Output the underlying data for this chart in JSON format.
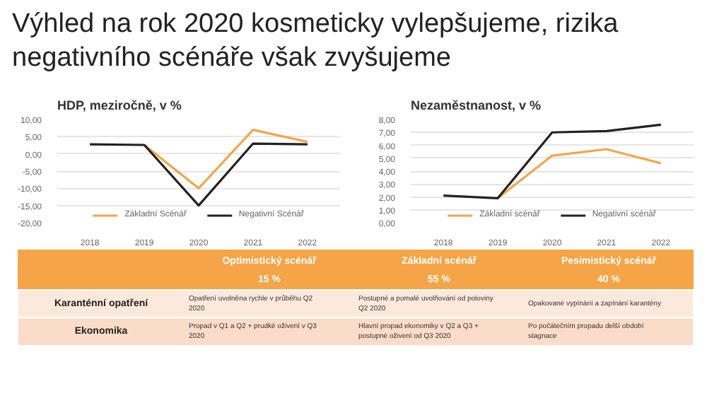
{
  "chart_data": [
    {
      "type": "other",
      "title": "Výhled na rok 2020 kosmeticky vylepšujeme, rizika negativního scénáře však zvyšujeme"
    },
    {
      "type": "line",
      "title": "HDP, meziročně, v %",
      "categories": [
        "2018",
        "2019",
        "2020",
        "2021",
        "2022"
      ],
      "series": [
        {
          "name": "Základní Scénář",
          "color": "#f5a547",
          "values": [
            null,
            2.6,
            -10.0,
            7.0,
            3.5
          ]
        },
        {
          "name": "Negativní Scénář",
          "color": "#222222",
          "values": [
            2.8,
            2.6,
            -15.0,
            3.0,
            2.8
          ]
        }
      ],
      "ylim": [
        -20,
        10
      ],
      "yticks": [
        {
          "value": -20,
          "label": "-20,00"
        },
        {
          "value": -15,
          "label": "-15,00"
        },
        {
          "value": -10,
          "label": "-10,00"
        },
        {
          "value": -5,
          "label": "-5,00"
        },
        {
          "value": 0,
          "label": "0,00"
        },
        {
          "value": 5,
          "label": "5,00"
        },
        {
          "value": 10,
          "label": "10,00"
        }
      ],
      "grid": "y",
      "legend": "bottom",
      "marker": "none",
      "line_style": "solid"
    },
    {
      "type": "line",
      "title": "Nezaměstnanost, v %",
      "categories": [
        "2018",
        "2019",
        "2020",
        "2021",
        "2022"
      ],
      "series": [
        {
          "name": "Základní scénář",
          "color": "#f5a547",
          "values": [
            null,
            1.9,
            5.2,
            5.7,
            4.6
          ]
        },
        {
          "name": "Negativní scénář",
          "color": "#222222",
          "values": [
            2.1,
            1.9,
            7.0,
            7.1,
            7.6
          ]
        }
      ],
      "ylim": [
        0,
        8
      ],
      "yticks": [
        {
          "value": 0,
          "label": "0,00"
        },
        {
          "value": 1,
          "label": "1,00"
        },
        {
          "value": 2,
          "label": "2,00"
        },
        {
          "value": 3,
          "label": "3,00"
        },
        {
          "value": 4,
          "label": "4,00"
        },
        {
          "value": 5,
          "label": "5,00"
        },
        {
          "value": 6,
          "label": "6,00"
        },
        {
          "value": 7,
          "label": "7,00"
        },
        {
          "value": 8,
          "label": "8,00"
        }
      ],
      "grid": "y",
      "legend": "bottom",
      "marker": "none",
      "line_style": "solid"
    },
    {
      "type": "other",
      "categories": [
        "Optimistický scénář",
        "Základní scénář",
        "Pesimistický scénář"
      ],
      "annotations": [
        "15 %",
        "55 %",
        "40 %"
      ],
      "y_categories": [
        "Karanténní opatření",
        "Ekonomika"
      ],
      "cell_labels": [
        [
          "Opatření uvolněna rychle v průběhu Q2 2020",
          "Postupné a pomalé uvolňování od poloviny Q2 2020",
          "Opakované vypínání a zapínání karantény"
        ],
        [
          "Propad v Q1 a Q2 + prudké oživení v Q3 2020",
          "Hlavní propad ekonomiky v Q2 a Q3 + postupné oživení od Q3 2020",
          "Po počátečním propadu delší období stagnace"
        ]
      ]
    }
  ]
}
